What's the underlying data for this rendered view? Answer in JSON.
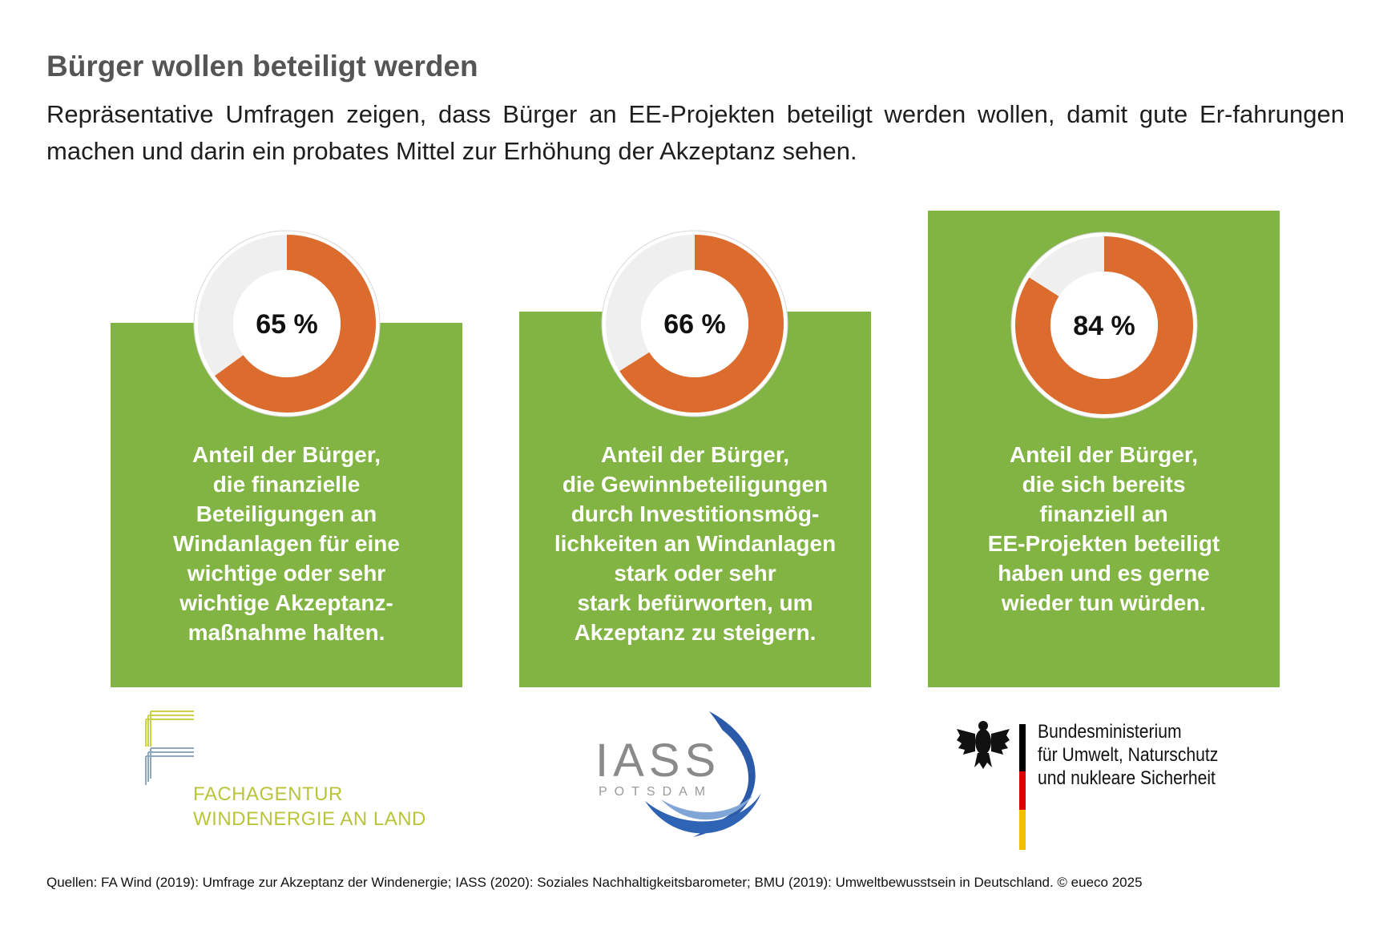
{
  "header": {
    "title": "Bürger wollen beteiligt werden",
    "subtitle": "Repräsentative Umfragen zeigen, dass Bürger an EE-Projekten beteiligt werden wollen, damit gute Er-fahrungen machen und darin ein probates Mittel zur Erhöhung der Akzeptanz sehen."
  },
  "colors": {
    "card_green": "#81b442",
    "donut_orange": "#dc6c2e",
    "donut_gray": "#efefef",
    "title_gray": "#555555"
  },
  "chart_data": [
    {
      "type": "pie",
      "value": 65,
      "label": "65 %",
      "description": "Anteil der Bürger,\ndie finanzielle\nBeteiligungen an\nWindanlagen für eine\nwichtige oder sehr\nwichtige Akzeptanz-\nmaßnahme halten."
    },
    {
      "type": "pie",
      "value": 66,
      "label": "66 %",
      "description": "Anteil der Bürger,\ndie Gewinnbeteiligungen\ndurch Investitionsmög-\nlichkeiten an Windanlagen\nstark oder sehr\nstark befürworten, um\nAkzeptanz zu steigern."
    },
    {
      "type": "pie",
      "value": 84,
      "label": "84 %",
      "description": "Anteil der Bürger,\ndie sich bereits\nfinanziell an\nEE-Projekten beteiligt\nhaben und es gerne\nwieder tun würden."
    }
  ],
  "logos": {
    "fa_wind": {
      "line1": "FACHAGENTUR",
      "line2": "WINDENERGIE AN LAND",
      "icon": "fa-wind-logo"
    },
    "iass": {
      "name": "IASS",
      "sub": "POTSDAM",
      "icon": "iass-wave-logo"
    },
    "bmu": {
      "line1": "Bundesministerium",
      "line2": "für Umwelt, Naturschutz",
      "line3": "und nukleare Sicherheit",
      "icon": "federal-eagle-icon"
    }
  },
  "footer": {
    "source": "Quellen: FA Wind (2019): Umfrage zur Akzeptanz der Windenergie; IASS (2020): Soziales Nachhaltigkeitsbarometer; BMU (2019): Umweltbewusstsein in Deutschland. © eueco 2025"
  }
}
